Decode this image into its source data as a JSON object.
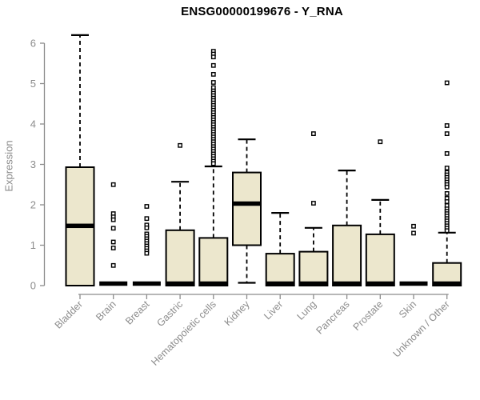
{
  "chart_data": {
    "type": "boxplot",
    "title": "ENSG00000199676 - Y_RNA",
    "xlabel": "",
    "ylabel": "Expression",
    "ylim": [
      0,
      6.3
    ],
    "yticks": [
      0,
      1,
      2,
      3,
      4,
      5,
      6
    ],
    "grid": false,
    "legend": "none",
    "box_fill": "#ECE7CD",
    "box_stroke": "#000000",
    "axis_color": "#8c8c8c",
    "categories": [
      "Bladder",
      "Brain",
      "Breast",
      "Gastric",
      "Hematopoietic cells",
      "Kidney",
      "Liver",
      "Lung",
      "Pancreas",
      "Prostate",
      "Skin",
      "Unknown / Other"
    ],
    "boxes": [
      {
        "label": "Bladder",
        "q1": 0,
        "median": 1.48,
        "q3": 2.93,
        "whisker_low": 0,
        "whisker_high": 6.2,
        "outliers": []
      },
      {
        "label": "Brain",
        "q1": 0,
        "median": 0.05,
        "q3": 0.03,
        "whisker_low": 0,
        "whisker_high": 0.03,
        "outliers": [
          2.5,
          1.78,
          1.7,
          1.63,
          1.42,
          1.08,
          0.93,
          0.5
        ]
      },
      {
        "label": "Breast",
        "q1": 0,
        "median": 0.05,
        "q3": 0.03,
        "whisker_low": 0,
        "whisker_high": 0.03,
        "outliers": [
          1.96,
          1.66,
          1.5,
          1.43,
          1.28,
          1.22,
          1.16,
          1.1,
          1.04,
          0.98,
          0.92,
          0.86,
          0.8
        ]
      },
      {
        "label": "Gastric",
        "q1": 0,
        "median": 0.05,
        "q3": 1.37,
        "whisker_low": 0,
        "whisker_high": 2.57,
        "outliers": [
          3.47
        ]
      },
      {
        "label": "Hematopoietic cells",
        "q1": 0,
        "median": 0.05,
        "q3": 1.18,
        "whisker_low": 0,
        "whisker_high": 2.95,
        "outliers": [
          5.8,
          5.73,
          5.66,
          5.45,
          5.23,
          5.03,
          4.9,
          4.82,
          4.76,
          4.7,
          4.64,
          4.58,
          4.52,
          4.46,
          4.4,
          4.34,
          4.28,
          4.22,
          4.16,
          4.1,
          4.04,
          3.98,
          3.92,
          3.86,
          3.8,
          3.74,
          3.68,
          3.62,
          3.56,
          3.5,
          3.44,
          3.38,
          3.32,
          3.26,
          3.2,
          3.14,
          3.08,
          3.02
        ]
      },
      {
        "label": "Kidney",
        "q1": 1.0,
        "median": 2.03,
        "q3": 2.8,
        "whisker_low": 0.07,
        "whisker_high": 3.62,
        "outliers": []
      },
      {
        "label": "Liver",
        "q1": 0,
        "median": 0.05,
        "q3": 0.79,
        "whisker_low": 0,
        "whisker_high": 1.8,
        "outliers": []
      },
      {
        "label": "Lung",
        "q1": 0,
        "median": 0.05,
        "q3": 0.84,
        "whisker_low": 0,
        "whisker_high": 1.43,
        "outliers": [
          2.04,
          3.76
        ]
      },
      {
        "label": "Pancreas",
        "q1": 0,
        "median": 0.05,
        "q3": 1.49,
        "whisker_low": 0,
        "whisker_high": 2.85,
        "outliers": []
      },
      {
        "label": "Prostate",
        "q1": 0,
        "median": 0.05,
        "q3": 1.27,
        "whisker_low": 0,
        "whisker_high": 2.12,
        "outliers": [
          3.56
        ]
      },
      {
        "label": "Skin",
        "q1": 0,
        "median": 0.05,
        "q3": 0.03,
        "whisker_low": 0,
        "whisker_high": 0.03,
        "outliers": [
          1.47,
          1.3
        ]
      },
      {
        "label": "Unknown / Other",
        "q1": 0,
        "median": 0.05,
        "q3": 0.56,
        "whisker_low": 0,
        "whisker_high": 1.31,
        "outliers": [
          5.02,
          3.96,
          3.76,
          3.27,
          2.91,
          2.8,
          2.74,
          2.68,
          2.62,
          2.56,
          2.5,
          2.44,
          2.28,
          2.16,
          2.08,
          1.98,
          1.9,
          1.84,
          1.78,
          1.72,
          1.66,
          1.6,
          1.54,
          1.48,
          1.42,
          1.36
        ]
      }
    ]
  }
}
